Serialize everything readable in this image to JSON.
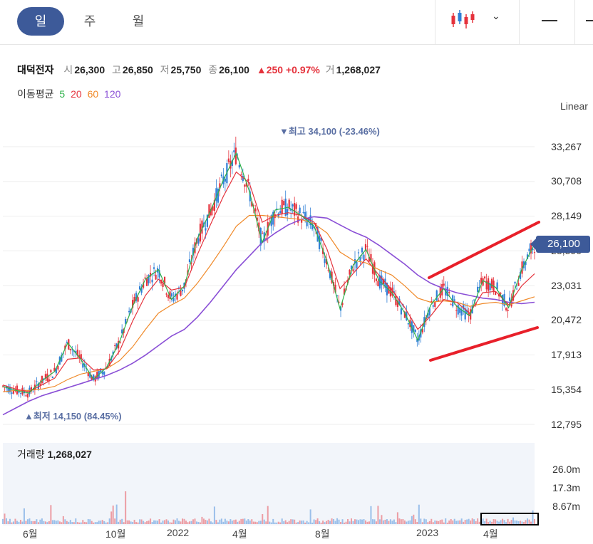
{
  "tabs": [
    {
      "label": "일",
      "active": true
    },
    {
      "label": "주",
      "active": false
    },
    {
      "label": "월",
      "active": false
    }
  ],
  "toolbar": {
    "chart_type_icon": "candlestick-icon",
    "dropdown_icon": "chevron-down-icon"
  },
  "stock": {
    "name": "대덕전자",
    "open_label": "시",
    "open": "26,300",
    "high_label": "고",
    "high": "26,850",
    "low_label": "저",
    "low": "25,750",
    "close_label": "종",
    "close": "26,100",
    "change": "▲250 +0.97%",
    "volume_label": "거",
    "volume": "1,268,027"
  },
  "moving_average": {
    "label": "이동평균",
    "periods": [
      "5",
      "20",
      "60",
      "120"
    ],
    "colors": [
      "#2db24a",
      "#e5323c",
      "#f08a2a",
      "#8a4fd6"
    ]
  },
  "scale_mode": "Linear",
  "price_axis": [
    "33,267",
    "30,708",
    "28,149",
    "25,590",
    "23,031",
    "20,472",
    "17,913",
    "15,354",
    "12,795"
  ],
  "current_price_badge": "26,100",
  "annotations": {
    "high": "▼최고 34,100 (-23.46%)",
    "low": "▲최저 14,150 (84.45%)"
  },
  "volume_panel": {
    "label": "거래량",
    "value": "1,268,027",
    "axis": [
      "26.0m",
      "17.3m",
      "8.67m"
    ]
  },
  "x_axis": [
    "6월",
    "10월",
    "2022",
    "4월",
    "8월",
    "2023",
    "4월"
  ],
  "colors": {
    "up": "#e5323c",
    "down": "#2f7fd6",
    "accent": "#3d5a99",
    "trendline": "#e8202a"
  },
  "chart_data": {
    "type": "candlestick",
    "title": "대덕전자",
    "xlabel": "",
    "ylabel": "",
    "ylim": [
      12795,
      35826
    ],
    "grid": true,
    "legend": "top-left",
    "series": [
      {
        "name": "5",
        "values": [
          15600,
          15300,
          15100,
          16000,
          16700,
          18800,
          17600,
          16100,
          17000,
          18900,
          21500,
          23500,
          24200,
          22000,
          23000,
          26500,
          28500,
          30800,
          32800,
          30000,
          26200,
          28600,
          28800,
          28200,
          27400,
          24800,
          21300,
          24500,
          25700,
          23400,
          22500,
          21000,
          19000,
          21600,
          22800,
          21500,
          20800,
          23400,
          22900,
          21400,
          24200,
          26100
        ]
      },
      {
        "name": "20",
        "values": [
          15700,
          15400,
          15200,
          15700,
          16200,
          17600,
          17700,
          16800,
          16900,
          18200,
          20400,
          22300,
          23500,
          22700,
          22900,
          25300,
          27500,
          29600,
          31400,
          30600,
          27700,
          28200,
          28400,
          28200,
          27700,
          25700,
          22800,
          23900,
          25000,
          23800,
          22700,
          21400,
          19800,
          20800,
          22000,
          21800,
          21000,
          22500,
          22600,
          21600,
          23000,
          23900
        ]
      },
      {
        "name": "60",
        "values": [
          15200,
          15300,
          15300,
          15400,
          15600,
          16100,
          16500,
          16700,
          16900,
          17500,
          18500,
          19800,
          21000,
          21600,
          22100,
          23200,
          24500,
          25900,
          27400,
          28200,
          28200,
          28100,
          28000,
          27900,
          27600,
          26900,
          25500,
          24900,
          24700,
          24200,
          23800,
          23000,
          22100,
          21800,
          21900,
          21800,
          21500,
          21700,
          21800,
          21600,
          21900,
          22200
        ]
      },
      {
        "name": "120",
        "values": [
          13500,
          14000,
          14500,
          14900,
          15200,
          15500,
          15800,
          16100,
          16400,
          16800,
          17300,
          17900,
          18600,
          19300,
          19800,
          20700,
          21800,
          23000,
          24200,
          25200,
          26200,
          26900,
          27500,
          27900,
          28100,
          28000,
          27500,
          27000,
          26600,
          26000,
          25300,
          24600,
          23800,
          23200,
          22800,
          22500,
          22300,
          22100,
          22000,
          21800,
          21700,
          21800
        ]
      }
    ],
    "price_high": {
      "value": 34100,
      "label": "최고 34,100 (-23.46%)"
    },
    "price_low": {
      "value": 14150,
      "label": "최저 14,150 (84.45%)"
    },
    "last": {
      "open": 26300,
      "high": 26850,
      "low": 25750,
      "close": 26100,
      "volume": 1268027
    }
  }
}
